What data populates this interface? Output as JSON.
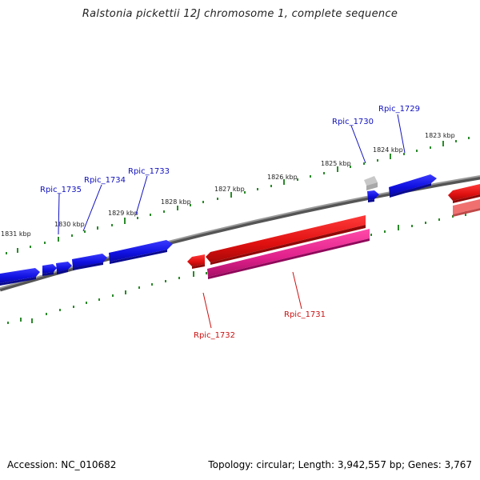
{
  "title": "Ralstonia pickettii 12J chromosome 1, complete sequence",
  "footer": {
    "accession": "Accession: NC_010682",
    "topology": "Topology: circular; Length: 3,942,557 bp; Genes: 3,767"
  },
  "ticks": [
    "1823 kbp",
    "1824 kbp",
    "1825 kbp",
    "1826 kbp",
    "1827 kbp",
    "1828 kbp",
    "1829 kbp",
    "1830 kbp",
    "1831 kbp"
  ],
  "genes": {
    "forward_labeled": [
      "Rpic_1729",
      "Rpic_1730",
      "Rpic_1733",
      "Rpic_1734",
      "Rpic_1735"
    ],
    "reverse_labeled": [
      "Rpic_1731",
      "Rpic_1732"
    ]
  },
  "colors": {
    "forward_strand": "#1010e0",
    "reverse_strand": "#e01010",
    "rna": "#e0208c",
    "pseudo": "#b0b0b0",
    "backbone": "#808080",
    "tick": "#2a8a2a"
  }
}
